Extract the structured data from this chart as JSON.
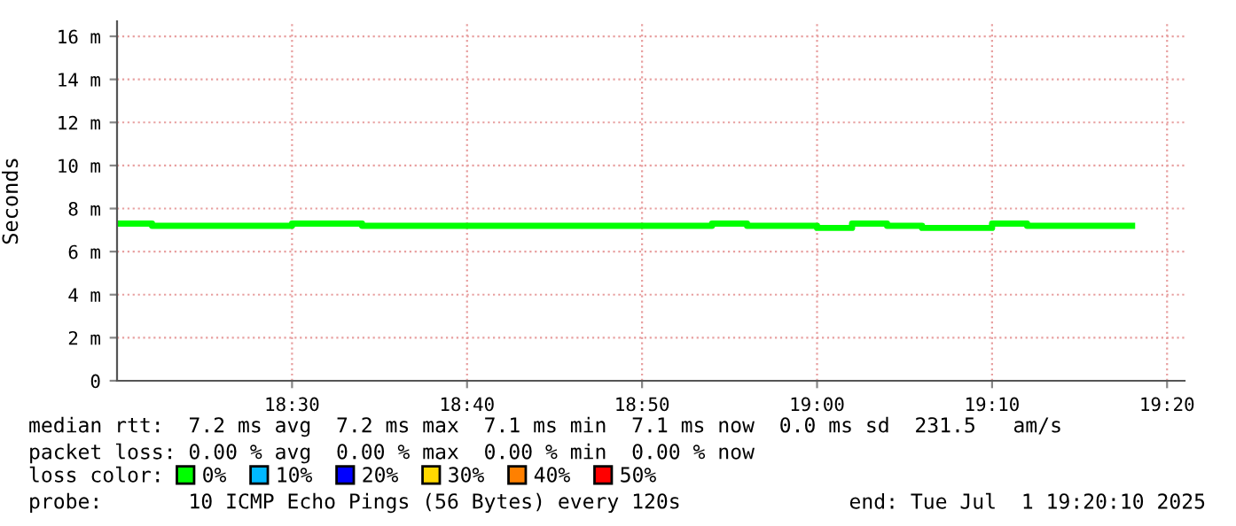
{
  "chart_data": {
    "type": "step",
    "ylabel": "Seconds",
    "x": [
      "2025-07-01T18:20",
      "2025-07-01T18:22",
      "2025-07-01T18:24",
      "2025-07-01T18:26",
      "2025-07-01T18:28",
      "2025-07-01T18:30",
      "2025-07-01T18:32",
      "2025-07-01T18:34",
      "2025-07-01T18:36",
      "2025-07-01T18:38",
      "2025-07-01T18:40",
      "2025-07-01T18:42",
      "2025-07-01T18:44",
      "2025-07-01T18:46",
      "2025-07-01T18:48",
      "2025-07-01T18:50",
      "2025-07-01T18:52",
      "2025-07-01T18:54",
      "2025-07-01T18:56",
      "2025-07-01T18:58",
      "2025-07-01T19:00",
      "2025-07-01T19:02",
      "2025-07-01T19:04",
      "2025-07-01T19:06",
      "2025-07-01T19:08",
      "2025-07-01T19:10",
      "2025-07-01T19:12",
      "2025-07-01T19:14",
      "2025-07-01T19:16",
      "2025-07-01T19:18"
    ],
    "series": [
      {
        "name": "0%",
        "color": "#00ff00",
        "values": [
          7.3,
          7.2,
          7.2,
          7.2,
          7.2,
          7.3,
          7.3,
          7.2,
          7.2,
          7.2,
          7.2,
          7.2,
          7.2,
          7.2,
          7.2,
          7.2,
          7.2,
          7.3,
          7.2,
          7.2,
          7.1,
          7.3,
          7.2,
          7.1,
          7.1,
          7.3,
          7.2,
          7.2,
          7.2,
          7.2
        ]
      },
      {
        "name": "10%",
        "color": "#00b8ff",
        "values": [
          null,
          null,
          null,
          null,
          null,
          null,
          null,
          null,
          null,
          null,
          null,
          null,
          null,
          null,
          null,
          null,
          null,
          null,
          null,
          null,
          null,
          null,
          null,
          null,
          null,
          null,
          null,
          null,
          null,
          null
        ]
      },
      {
        "name": "20%",
        "color": "#0000ff",
        "values": [
          null,
          null,
          null,
          null,
          null,
          null,
          null,
          null,
          null,
          null,
          null,
          null,
          null,
          null,
          null,
          null,
          null,
          null,
          null,
          null,
          null,
          null,
          null,
          null,
          null,
          null,
          null,
          null,
          null,
          null
        ]
      },
      {
        "name": "30%",
        "color": "#ffd800",
        "values": [
          null,
          null,
          null,
          null,
          null,
          null,
          null,
          null,
          null,
          null,
          null,
          null,
          null,
          null,
          null,
          null,
          null,
          null,
          null,
          null,
          null,
          null,
          null,
          null,
          null,
          null,
          null,
          null,
          null,
          null
        ]
      },
      {
        "name": "40%",
        "color": "#ff8000",
        "values": [
          null,
          null,
          null,
          null,
          null,
          null,
          null,
          null,
          null,
          null,
          null,
          null,
          null,
          null,
          null,
          null,
          null,
          null,
          null,
          null,
          null,
          null,
          null,
          null,
          null,
          null,
          null,
          null,
          null,
          null
        ]
      },
      {
        "name": "50%",
        "color": "#ff0000",
        "values": [
          null,
          null,
          null,
          null,
          null,
          null,
          null,
          null,
          null,
          null,
          null,
          null,
          null,
          null,
          null,
          null,
          null,
          null,
          null,
          null,
          null,
          null,
          null,
          null,
          null,
          null,
          null,
          null,
          null,
          null
        ]
      }
    ],
    "xlim": [
      "2025-07-01T18:20",
      "2025-07-01T19:21"
    ],
    "xticks": [
      {
        "value": "2025-07-01T18:30",
        "label": "18:30"
      },
      {
        "value": "2025-07-01T18:40",
        "label": "18:40"
      },
      {
        "value": "2025-07-01T18:50",
        "label": "18:50"
      },
      {
        "value": "2025-07-01T19:00",
        "label": "19:00"
      },
      {
        "value": "2025-07-01T19:10",
        "label": "19:10"
      },
      {
        "value": "2025-07-01T19:20",
        "label": "19:20"
      }
    ],
    "ylim": [
      0,
      16.7
    ],
    "yticks": [
      0,
      {
        "value": 2,
        "label": "2 m"
      },
      {
        "value": 4,
        "label": "4 m"
      },
      {
        "value": 6,
        "label": "6 m"
      },
      {
        "value": 8,
        "label": "8 m"
      },
      {
        "value": 10,
        "label": "10 m"
      },
      {
        "value": 12,
        "label": "12 m"
      },
      {
        "value": 14,
        "label": "14 m"
      },
      {
        "value": 16,
        "label": "16 m"
      }
    ],
    "grid": true,
    "legend": "bottom left",
    "annotations": [
      "median rtt:  7.2 ms avg  7.2 ms max  7.1 ms min  7.1 ms now  0.0 ms sd  231.5   am/s",
      "packet loss: 0.00 % avg  0.00 % max  0.00 % min  0.00 % now",
      "loss color:",
      "probe:       10 ICMP Echo Pings (56 Bytes) every 120s",
      "end: Tue Jul  1 19:20:10 2025"
    ]
  }
}
